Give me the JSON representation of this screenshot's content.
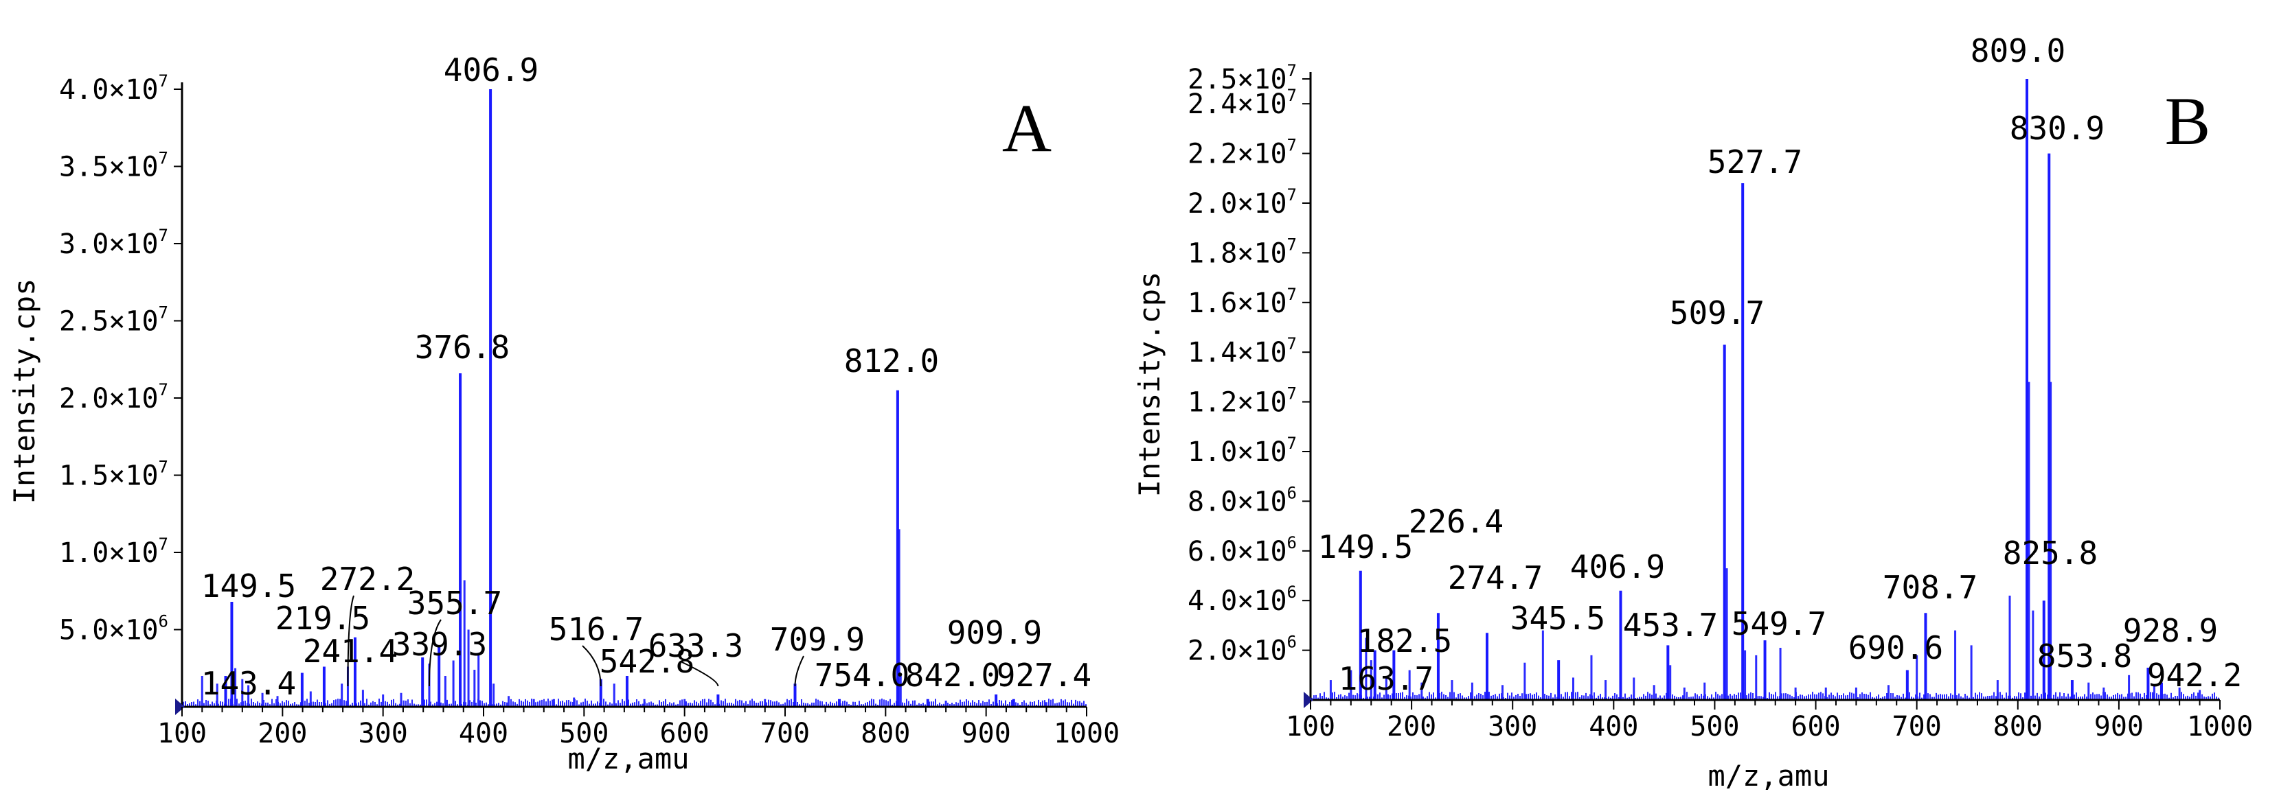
{
  "chart_data": [
    {
      "type": "bar",
      "panel_label": "A",
      "xlabel": "m/z,amu",
      "ylabel": "Intensity.cps",
      "xlim": [
        100,
        1000
      ],
      "ylim": [
        0,
        40000000
      ],
      "x_ticks": [
        {
          "value": 100,
          "label": "100"
        },
        {
          "value": 200,
          "label": "200"
        },
        {
          "value": 300,
          "label": "300"
        },
        {
          "value": 400,
          "label": "400"
        },
        {
          "value": 500,
          "label": "500"
        },
        {
          "value": 600,
          "label": "600"
        },
        {
          "value": 700,
          "label": "700"
        },
        {
          "value": 800,
          "label": "800"
        },
        {
          "value": 900,
          "label": "900"
        },
        {
          "value": 1000,
          "label": "1000"
        }
      ],
      "y_ticks": [
        {
          "value": 5000000,
          "mantissa": "5.0",
          "exponent": "6"
        },
        {
          "value": 10000000,
          "mantissa": "1.0",
          "exponent": "7"
        },
        {
          "value": 15000000,
          "mantissa": "1.5",
          "exponent": "7"
        },
        {
          "value": 20000000,
          "mantissa": "2.0",
          "exponent": "7"
        },
        {
          "value": 25000000,
          "mantissa": "2.5",
          "exponent": "7"
        },
        {
          "value": 30000000,
          "mantissa": "3.0",
          "exponent": "7"
        },
        {
          "value": 35000000,
          "mantissa": "3.5",
          "exponent": "7"
        },
        {
          "value": 40000000,
          "mantissa": "4.0",
          "exponent": "7"
        }
      ],
      "peaks": [
        {
          "mz": 143.4,
          "intensity": 2000000,
          "label": "143.4"
        },
        {
          "mz": 149.5,
          "intensity": 6800000,
          "label": "149.5"
        },
        {
          "mz": 219.5,
          "intensity": 2200000,
          "label": "219.5"
        },
        {
          "mz": 241.4,
          "intensity": 2600000,
          "label": "241.4"
        },
        {
          "mz": 272.2,
          "intensity": 4500000,
          "label": "272.2"
        },
        {
          "mz": 339.3,
          "intensity": 3200000,
          "label": "339.3"
        },
        {
          "mz": 355.7,
          "intensity": 4000000,
          "label": "355.7"
        },
        {
          "mz": 376.8,
          "intensity": 21600000,
          "label": "376.8"
        },
        {
          "mz": 406.9,
          "intensity": 40000000,
          "label": "406.9"
        },
        {
          "mz": 516.7,
          "intensity": 1800000,
          "label": "516.7"
        },
        {
          "mz": 542.8,
          "intensity": 2000000,
          "label": "542.8"
        },
        {
          "mz": 633.3,
          "intensity": 800000,
          "label": "633.3"
        },
        {
          "mz": 709.9,
          "intensity": 1500000,
          "label": "709.9"
        },
        {
          "mz": 754.0,
          "intensity": 500000,
          "label": "754.0"
        },
        {
          "mz": 812.0,
          "intensity": 20500000,
          "label": "812.0"
        },
        {
          "mz": 842.0,
          "intensity": 500000,
          "label": "842.0"
        },
        {
          "mz": 909.9,
          "intensity": 800000,
          "label": "909.9"
        },
        {
          "mz": 927.4,
          "intensity": 500000,
          "label": "927.4"
        }
      ],
      "minor_peaks": [
        {
          "mz": 120,
          "intensity": 2000000
        },
        {
          "mz": 135,
          "intensity": 1500000
        },
        {
          "mz": 153,
          "intensity": 2500000
        },
        {
          "mz": 160,
          "intensity": 1800000
        },
        {
          "mz": 166,
          "intensity": 1400000
        },
        {
          "mz": 180,
          "intensity": 900000
        },
        {
          "mz": 195,
          "intensity": 700000
        },
        {
          "mz": 228,
          "intensity": 1000000
        },
        {
          "mz": 259,
          "intensity": 1500000
        },
        {
          "mz": 265,
          "intensity": 2600000
        },
        {
          "mz": 280,
          "intensity": 1100000
        },
        {
          "mz": 300,
          "intensity": 800000
        },
        {
          "mz": 318,
          "intensity": 900000
        },
        {
          "mz": 346,
          "intensity": 2800000
        },
        {
          "mz": 362,
          "intensity": 2000000
        },
        {
          "mz": 370,
          "intensity": 3000000
        },
        {
          "mz": 381,
          "intensity": 8200000
        },
        {
          "mz": 385,
          "intensity": 5000000
        },
        {
          "mz": 391,
          "intensity": 2400000
        },
        {
          "mz": 395,
          "intensity": 3500000
        },
        {
          "mz": 410,
          "intensity": 1500000
        },
        {
          "mz": 425,
          "intensity": 700000
        },
        {
          "mz": 450,
          "intensity": 500000
        },
        {
          "mz": 470,
          "intensity": 500000
        },
        {
          "mz": 490,
          "intensity": 600000
        },
        {
          "mz": 530,
          "intensity": 1500000
        },
        {
          "mz": 560,
          "intensity": 500000
        },
        {
          "mz": 600,
          "intensity": 500000
        },
        {
          "mz": 680,
          "intensity": 500000
        },
        {
          "mz": 813.5,
          "intensity": 11500000
        },
        {
          "mz": 815,
          "intensity": 2000000
        },
        {
          "mz": 860,
          "intensity": 400000
        },
        {
          "mz": 960,
          "intensity": 300000
        }
      ],
      "callouts": [
        {
          "label": "272.2",
          "from_mz": 265,
          "to_mz": 272.2
        },
        {
          "label": "355.7",
          "from_mz": 346,
          "to_mz": 355.7
        },
        {
          "label": "516.7",
          "from_mz": 516.7,
          "to_mz": 522
        },
        {
          "label": "633.3",
          "from_mz": 633.3,
          "to_mz": 642
        },
        {
          "label": "709.9",
          "from_mz": 709.9,
          "to_mz": 714
        }
      ]
    },
    {
      "type": "bar",
      "panel_label": "B",
      "xlabel": "m/z,amu",
      "ylabel": "Intensity.cps",
      "xlim": [
        100,
        1000
      ],
      "ylim": [
        0,
        25000000
      ],
      "x_ticks": [
        {
          "value": 100,
          "label": "100"
        },
        {
          "value": 200,
          "label": "200"
        },
        {
          "value": 300,
          "label": "300"
        },
        {
          "value": 400,
          "label": "400"
        },
        {
          "value": 500,
          "label": "500"
        },
        {
          "value": 600,
          "label": "600"
        },
        {
          "value": 700,
          "label": "700"
        },
        {
          "value": 800,
          "label": "800"
        },
        {
          "value": 900,
          "label": "900"
        },
        {
          "value": 1000,
          "label": "1000"
        }
      ],
      "y_ticks": [
        {
          "value": 2000000,
          "mantissa": "2.0",
          "exponent": "6"
        },
        {
          "value": 4000000,
          "mantissa": "4.0",
          "exponent": "6"
        },
        {
          "value": 6000000,
          "mantissa": "6.0",
          "exponent": "6"
        },
        {
          "value": 8000000,
          "mantissa": "8.0",
          "exponent": "6"
        },
        {
          "value": 10000000,
          "mantissa": "1.0",
          "exponent": "7"
        },
        {
          "value": 12000000,
          "mantissa": "1.2",
          "exponent": "7"
        },
        {
          "value": 14000000,
          "mantissa": "1.4",
          "exponent": "7"
        },
        {
          "value": 16000000,
          "mantissa": "1.6",
          "exponent": "7"
        },
        {
          "value": 18000000,
          "mantissa": "1.8",
          "exponent": "7"
        },
        {
          "value": 20000000,
          "mantissa": "2.0",
          "exponent": "7"
        },
        {
          "value": 22000000,
          "mantissa": "2.2",
          "exponent": "7"
        },
        {
          "value": 24000000,
          "mantissa": "2.4",
          "exponent": "7"
        },
        {
          "value": 25000000,
          "mantissa": "2.5",
          "exponent": "7"
        }
      ],
      "peaks": [
        {
          "mz": 149.5,
          "intensity": 5200000,
          "label": "149.5"
        },
        {
          "mz": 163.7,
          "intensity": 2000000,
          "label": "163.7"
        },
        {
          "mz": 182.5,
          "intensity": 2000000,
          "label": "182.5"
        },
        {
          "mz": 226.4,
          "intensity": 3500000,
          "label": "226.4"
        },
        {
          "mz": 274.7,
          "intensity": 2700000,
          "label": "274.7"
        },
        {
          "mz": 345.5,
          "intensity": 1600000,
          "label": "345.5"
        },
        {
          "mz": 406.9,
          "intensity": 4400000,
          "label": "406.9"
        },
        {
          "mz": 453.7,
          "intensity": 2200000,
          "label": "453.7"
        },
        {
          "mz": 509.7,
          "intensity": 14300000,
          "label": "509.7"
        },
        {
          "mz": 527.7,
          "intensity": 20800000,
          "label": "527.7"
        },
        {
          "mz": 549.7,
          "intensity": 2400000,
          "label": "549.7"
        },
        {
          "mz": 690.6,
          "intensity": 1200000,
          "label": "690.6"
        },
        {
          "mz": 708.7,
          "intensity": 3500000,
          "label": "708.7"
        },
        {
          "mz": 809.0,
          "intensity": 25000000,
          "label": "809.0"
        },
        {
          "mz": 825.8,
          "intensity": 4000000,
          "label": "825.8"
        },
        {
          "mz": 830.9,
          "intensity": 22000000,
          "label": "830.9"
        },
        {
          "mz": 853.8,
          "intensity": 800000,
          "label": "853.8"
        },
        {
          "mz": 928.9,
          "intensity": 1300000,
          "label": "928.9"
        },
        {
          "mz": 942.2,
          "intensity": 700000,
          "label": "942.2"
        }
      ],
      "minor_peaks": [
        {
          "mz": 120,
          "intensity": 800000
        },
        {
          "mz": 140,
          "intensity": 1200000
        },
        {
          "mz": 155,
          "intensity": 2500000
        },
        {
          "mz": 160,
          "intensity": 1600000
        },
        {
          "mz": 175,
          "intensity": 900000
        },
        {
          "mz": 198,
          "intensity": 1200000
        },
        {
          "mz": 210,
          "intensity": 700000
        },
        {
          "mz": 240,
          "intensity": 800000
        },
        {
          "mz": 260,
          "intensity": 700000
        },
        {
          "mz": 290,
          "intensity": 600000
        },
        {
          "mz": 312,
          "intensity": 1500000
        },
        {
          "mz": 330,
          "intensity": 2800000
        },
        {
          "mz": 360,
          "intensity": 900000
        },
        {
          "mz": 378,
          "intensity": 1800000
        },
        {
          "mz": 392,
          "intensity": 800000
        },
        {
          "mz": 420,
          "intensity": 900000
        },
        {
          "mz": 440,
          "intensity": 600000
        },
        {
          "mz": 456,
          "intensity": 1400000
        },
        {
          "mz": 470,
          "intensity": 500000
        },
        {
          "mz": 490,
          "intensity": 700000
        },
        {
          "mz": 512,
          "intensity": 5300000
        },
        {
          "mz": 530,
          "intensity": 2000000
        },
        {
          "mz": 541,
          "intensity": 1800000
        },
        {
          "mz": 565,
          "intensity": 2100000
        },
        {
          "mz": 580,
          "intensity": 500000
        },
        {
          "mz": 610,
          "intensity": 500000
        },
        {
          "mz": 640,
          "intensity": 500000
        },
        {
          "mz": 672,
          "intensity": 600000
        },
        {
          "mz": 700,
          "intensity": 1800000
        },
        {
          "mz": 738,
          "intensity": 2800000
        },
        {
          "mz": 754,
          "intensity": 2200000
        },
        {
          "mz": 780,
          "intensity": 800000
        },
        {
          "mz": 792,
          "intensity": 4200000
        },
        {
          "mz": 811,
          "intensity": 12800000
        },
        {
          "mz": 815,
          "intensity": 3600000
        },
        {
          "mz": 832.5,
          "intensity": 12800000
        },
        {
          "mz": 870,
          "intensity": 700000
        },
        {
          "mz": 885,
          "intensity": 500000
        },
        {
          "mz": 910,
          "intensity": 1000000
        },
        {
          "mz": 935,
          "intensity": 600000
        },
        {
          "mz": 960,
          "intensity": 500000
        },
        {
          "mz": 980,
          "intensity": 400000
        }
      ],
      "callouts": []
    }
  ]
}
